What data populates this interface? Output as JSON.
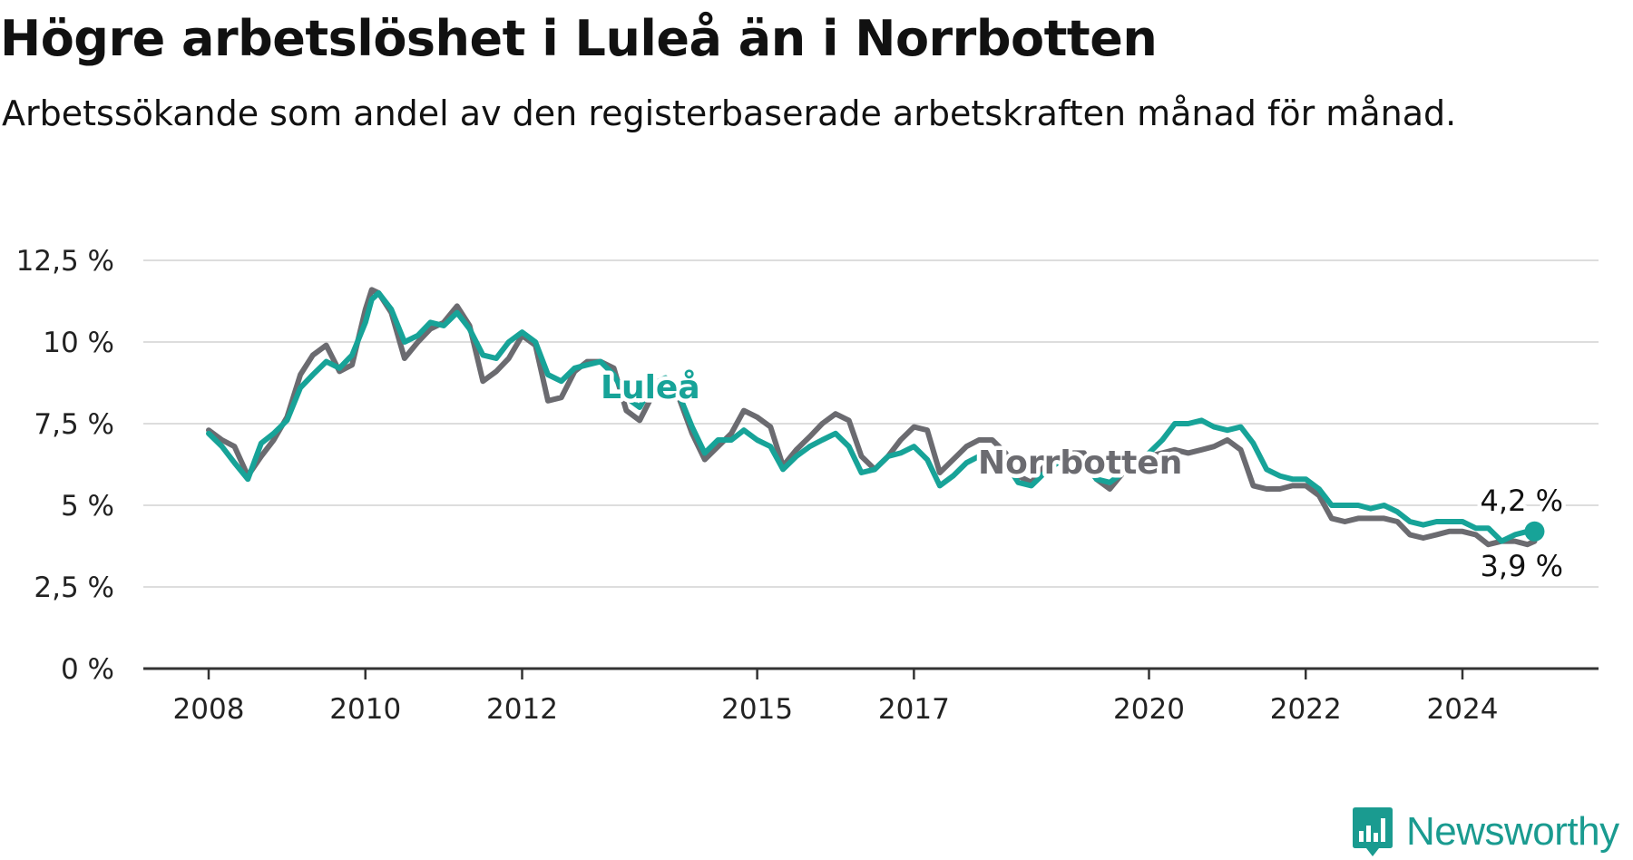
{
  "title": "Högre arbetslöshet i Luleå än i Norrbotten",
  "subtitle": "Arbetssökande som andel av den registerbaserade arbetskraften månad för månad.",
  "brand": {
    "name": "Newsworthy",
    "icon": "newsworthy-logo-icon",
    "color": "#1a9b90"
  },
  "chart_data": {
    "type": "line",
    "title": "Högre arbetslöshet i Luleå än i Norrbotten",
    "subtitle": "Arbetssökande som andel av den registerbaserade arbetskraften månad för månad.",
    "xlabel": "",
    "ylabel": "",
    "xlim": [
      2008,
      2025.25
    ],
    "ylim": [
      0,
      12.5
    ],
    "grid": true,
    "x_ticks": [
      2008,
      2010,
      2012,
      2015,
      2017,
      2020,
      2022,
      2024
    ],
    "y_ticks": [
      {
        "value": 0,
        "label": "0 %"
      },
      {
        "value": 2.5,
        "label": "2,5 %"
      },
      {
        "value": 5,
        "label": "5 %"
      },
      {
        "value": 7.5,
        "label": "7,5 %"
      },
      {
        "value": 10,
        "label": "10 %"
      },
      {
        "value": 12.5,
        "label": "12,5 %"
      }
    ],
    "series": [
      {
        "name": "Norrbotten",
        "color": "#6b6b70",
        "end_label": "3,9 %",
        "points": [
          [
            2008.0,
            7.3
          ],
          [
            2008.17,
            7.0
          ],
          [
            2008.33,
            6.8
          ],
          [
            2008.5,
            5.9
          ],
          [
            2008.67,
            6.5
          ],
          [
            2008.83,
            7.0
          ],
          [
            2009.0,
            7.7
          ],
          [
            2009.17,
            9.0
          ],
          [
            2009.33,
            9.6
          ],
          [
            2009.5,
            9.9
          ],
          [
            2009.67,
            9.1
          ],
          [
            2009.83,
            9.3
          ],
          [
            2010.0,
            11.0
          ],
          [
            2010.08,
            11.6
          ],
          [
            2010.17,
            11.5
          ],
          [
            2010.33,
            10.9
          ],
          [
            2010.5,
            9.5
          ],
          [
            2010.67,
            10.0
          ],
          [
            2010.83,
            10.4
          ],
          [
            2011.0,
            10.6
          ],
          [
            2011.17,
            11.1
          ],
          [
            2011.33,
            10.5
          ],
          [
            2011.5,
            8.8
          ],
          [
            2011.67,
            9.1
          ],
          [
            2011.83,
            9.5
          ],
          [
            2012.0,
            10.2
          ],
          [
            2012.17,
            9.9
          ],
          [
            2012.33,
            8.2
          ],
          [
            2012.5,
            8.3
          ],
          [
            2012.67,
            9.1
          ],
          [
            2012.83,
            9.4
          ],
          [
            2013.0,
            9.4
          ],
          [
            2013.17,
            9.2
          ],
          [
            2013.33,
            7.9
          ],
          [
            2013.5,
            7.6
          ],
          [
            2013.67,
            8.4
          ],
          [
            2013.83,
            8.6
          ],
          [
            2014.0,
            8.3
          ],
          [
            2014.17,
            7.2
          ],
          [
            2014.33,
            6.4
          ],
          [
            2014.5,
            6.8
          ],
          [
            2014.67,
            7.2
          ],
          [
            2014.83,
            7.9
          ],
          [
            2015.0,
            7.7
          ],
          [
            2015.17,
            7.4
          ],
          [
            2015.33,
            6.2
          ],
          [
            2015.5,
            6.7
          ],
          [
            2015.67,
            7.1
          ],
          [
            2015.83,
            7.5
          ],
          [
            2016.0,
            7.8
          ],
          [
            2016.17,
            7.6
          ],
          [
            2016.33,
            6.5
          ],
          [
            2016.5,
            6.1
          ],
          [
            2016.67,
            6.5
          ],
          [
            2016.83,
            7.0
          ],
          [
            2017.0,
            7.4
          ],
          [
            2017.17,
            7.3
          ],
          [
            2017.33,
            6.0
          ],
          [
            2017.5,
            6.4
          ],
          [
            2017.67,
            6.8
          ],
          [
            2017.83,
            7.0
          ],
          [
            2018.0,
            7.0
          ],
          [
            2018.17,
            6.6
          ],
          [
            2018.33,
            5.9
          ],
          [
            2018.5,
            5.7
          ],
          [
            2018.67,
            6.2
          ],
          [
            2018.83,
            6.5
          ],
          [
            2019.0,
            6.6
          ],
          [
            2019.17,
            6.6
          ],
          [
            2019.33,
            5.8
          ],
          [
            2019.5,
            5.5
          ],
          [
            2019.67,
            6.0
          ],
          [
            2019.83,
            6.4
          ],
          [
            2020.0,
            6.5
          ],
          [
            2020.17,
            6.6
          ],
          [
            2020.33,
            6.7
          ],
          [
            2020.5,
            6.6
          ],
          [
            2020.67,
            6.7
          ],
          [
            2020.83,
            6.8
          ],
          [
            2021.0,
            7.0
          ],
          [
            2021.17,
            6.7
          ],
          [
            2021.33,
            5.6
          ],
          [
            2021.5,
            5.5
          ],
          [
            2021.67,
            5.5
          ],
          [
            2021.83,
            5.6
          ],
          [
            2022.0,
            5.6
          ],
          [
            2022.17,
            5.3
          ],
          [
            2022.33,
            4.6
          ],
          [
            2022.5,
            4.5
          ],
          [
            2022.67,
            4.6
          ],
          [
            2022.83,
            4.6
          ],
          [
            2023.0,
            4.6
          ],
          [
            2023.17,
            4.5
          ],
          [
            2023.33,
            4.1
          ],
          [
            2023.5,
            4.0
          ],
          [
            2023.67,
            4.1
          ],
          [
            2023.83,
            4.2
          ],
          [
            2024.0,
            4.2
          ],
          [
            2024.17,
            4.1
          ],
          [
            2024.33,
            3.8
          ],
          [
            2024.5,
            3.9
          ],
          [
            2024.67,
            3.9
          ],
          [
            2024.83,
            3.8
          ],
          [
            2024.92,
            3.9
          ]
        ]
      },
      {
        "name": "Luleå",
        "color": "#17a398",
        "end_label": "4,2 %",
        "points": [
          [
            2008.0,
            7.2
          ],
          [
            2008.17,
            6.8
          ],
          [
            2008.33,
            6.3
          ],
          [
            2008.5,
            5.8
          ],
          [
            2008.67,
            6.9
          ],
          [
            2008.83,
            7.2
          ],
          [
            2009.0,
            7.6
          ],
          [
            2009.17,
            8.6
          ],
          [
            2009.33,
            9.0
          ],
          [
            2009.5,
            9.4
          ],
          [
            2009.67,
            9.2
          ],
          [
            2009.83,
            9.6
          ],
          [
            2010.0,
            10.6
          ],
          [
            2010.08,
            11.3
          ],
          [
            2010.17,
            11.5
          ],
          [
            2010.33,
            11.0
          ],
          [
            2010.5,
            10.0
          ],
          [
            2010.67,
            10.2
          ],
          [
            2010.83,
            10.6
          ],
          [
            2011.0,
            10.5
          ],
          [
            2011.17,
            10.9
          ],
          [
            2011.33,
            10.4
          ],
          [
            2011.5,
            9.6
          ],
          [
            2011.67,
            9.5
          ],
          [
            2011.83,
            10.0
          ],
          [
            2012.0,
            10.3
          ],
          [
            2012.17,
            10.0
          ],
          [
            2012.33,
            9.0
          ],
          [
            2012.5,
            8.8
          ],
          [
            2012.67,
            9.2
          ],
          [
            2012.83,
            9.3
          ],
          [
            2013.0,
            9.4
          ],
          [
            2013.17,
            9.0
          ],
          [
            2013.33,
            8.3
          ],
          [
            2013.5,
            8.0
          ],
          [
            2013.67,
            8.7
          ],
          [
            2013.83,
            8.9
          ],
          [
            2014.0,
            8.4
          ],
          [
            2014.17,
            7.4
          ],
          [
            2014.33,
            6.6
          ],
          [
            2014.5,
            7.0
          ],
          [
            2014.67,
            7.0
          ],
          [
            2014.83,
            7.3
          ],
          [
            2015.0,
            7.0
          ],
          [
            2015.17,
            6.8
          ],
          [
            2015.33,
            6.1
          ],
          [
            2015.5,
            6.5
          ],
          [
            2015.67,
            6.8
          ],
          [
            2015.83,
            7.0
          ],
          [
            2016.0,
            7.2
          ],
          [
            2016.17,
            6.8
          ],
          [
            2016.33,
            6.0
          ],
          [
            2016.5,
            6.1
          ],
          [
            2016.67,
            6.5
          ],
          [
            2016.83,
            6.6
          ],
          [
            2017.0,
            6.8
          ],
          [
            2017.17,
            6.4
          ],
          [
            2017.33,
            5.6
          ],
          [
            2017.5,
            5.9
          ],
          [
            2017.67,
            6.3
          ],
          [
            2017.83,
            6.5
          ],
          [
            2018.0,
            6.5
          ],
          [
            2018.17,
            6.3
          ],
          [
            2018.33,
            5.7
          ],
          [
            2018.5,
            5.6
          ],
          [
            2018.67,
            6.0
          ],
          [
            2018.83,
            6.3
          ],
          [
            2019.0,
            6.4
          ],
          [
            2019.17,
            6.3
          ],
          [
            2019.33,
            5.8
          ],
          [
            2019.5,
            5.7
          ],
          [
            2019.67,
            6.0
          ],
          [
            2019.83,
            6.3
          ],
          [
            2020.0,
            6.6
          ],
          [
            2020.17,
            7.0
          ],
          [
            2020.33,
            7.5
          ],
          [
            2020.5,
            7.5
          ],
          [
            2020.67,
            7.6
          ],
          [
            2020.83,
            7.4
          ],
          [
            2021.0,
            7.3
          ],
          [
            2021.17,
            7.4
          ],
          [
            2021.33,
            6.9
          ],
          [
            2021.5,
            6.1
          ],
          [
            2021.67,
            5.9
          ],
          [
            2021.83,
            5.8
          ],
          [
            2022.0,
            5.8
          ],
          [
            2022.17,
            5.5
          ],
          [
            2022.33,
            5.0
          ],
          [
            2022.5,
            5.0
          ],
          [
            2022.67,
            5.0
          ],
          [
            2022.83,
            4.9
          ],
          [
            2023.0,
            5.0
          ],
          [
            2023.17,
            4.8
          ],
          [
            2023.33,
            4.5
          ],
          [
            2023.5,
            4.4
          ],
          [
            2023.67,
            4.5
          ],
          [
            2023.83,
            4.5
          ],
          [
            2024.0,
            4.5
          ],
          [
            2024.17,
            4.3
          ],
          [
            2024.33,
            4.3
          ],
          [
            2024.5,
            3.9
          ],
          [
            2024.67,
            4.1
          ],
          [
            2024.83,
            4.2
          ],
          [
            2024.92,
            4.2
          ]
        ]
      }
    ]
  }
}
